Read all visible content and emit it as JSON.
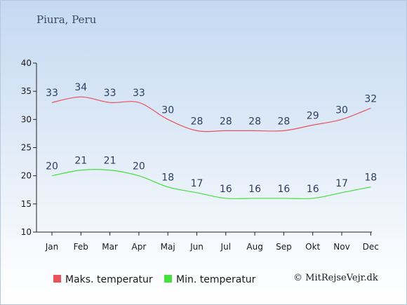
{
  "location": "Piura, Peru",
  "copyright": "© MitRejseVejr.dk",
  "chart_data": {
    "type": "line",
    "categories": [
      "Jan",
      "Feb",
      "Mar",
      "Apr",
      "Maj",
      "Jun",
      "Jul",
      "Aug",
      "Sep",
      "Okt",
      "Nov",
      "Dec"
    ],
    "ylim": [
      10,
      40
    ],
    "yticks": [
      10,
      15,
      20,
      25,
      30,
      35,
      40
    ],
    "grid": false,
    "legend_position": "bottom-left",
    "series": [
      {
        "name": "Maks. temperatur",
        "color": "#e8535c",
        "values": [
          33,
          34,
          33,
          33,
          30,
          28,
          28,
          28,
          28,
          29,
          30,
          32
        ]
      },
      {
        "name": "Min. temperatur",
        "color": "#44e03c",
        "values": [
          20,
          21,
          21,
          20,
          18,
          17,
          16,
          16,
          16,
          16,
          17,
          18
        ]
      }
    ]
  }
}
